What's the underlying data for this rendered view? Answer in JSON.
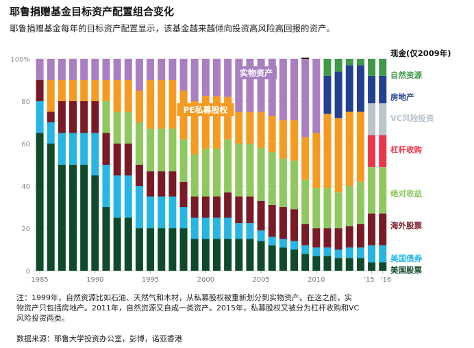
{
  "header": {
    "title": "耶鲁捐赠基金目标资产配置组合变化",
    "subtitle": "耶鲁捐赠基金每年的目标资产配置显示，该基金越来越倾向投资高风险高回报的资产。"
  },
  "footer": {
    "note_line1": "注：1999年，自然资源比如石油、天然气和木材，从私募股权被重新划分到实物资产。在这之前，实",
    "note_line2": "物资产只包括房地产。2011年，自然资源又自成一类资产。2015年，私募股权又被分为杠杆收购和VC",
    "note_line3": "风险投资两类。",
    "source": "数据来源：耶鲁大学投资办公室，彭博，诺亚香港"
  },
  "chart_data": {
    "type": "bar",
    "stacked": true,
    "title": "耶鲁捐赠基金目标资产配置组合变化",
    "categories": [
      "1985",
      "1986",
      "1987",
      "1988",
      "1989",
      "1990",
      "1991",
      "1992",
      "1993",
      "1994",
      "1995",
      "1996",
      "1997",
      "1998",
      "1999",
      "2000",
      "2001",
      "2002",
      "2003",
      "2004",
      "2005",
      "2006",
      "2007",
      "2008",
      "2009",
      "2010",
      "2011",
      "2012",
      "2013",
      "2014",
      "2015",
      "2016"
    ],
    "x_tick_labels": [
      "1985",
      "1990",
      "1995",
      "2000",
      "2005",
      "2010",
      "'15",
      "'16"
    ],
    "y_ticks": [
      "0",
      "20",
      "40",
      "60",
      "80",
      "100%"
    ],
    "ylim": [
      0,
      100
    ],
    "grid": true,
    "legend_position": "right",
    "bar_annotations": [
      {
        "series": "私募股权",
        "text": "PE私募股权"
      },
      {
        "series": "实物资产",
        "text": "实物资产"
      }
    ],
    "series": [
      {
        "name": "美国股票",
        "color": "#0f4a2a",
        "values": [
          65,
          60,
          50,
          50,
          50,
          45,
          30,
          25,
          25,
          20,
          20,
          20,
          20,
          20,
          15,
          15,
          15,
          15,
          15,
          15,
          14,
          12,
          11,
          10,
          8,
          7,
          7,
          6,
          6,
          6,
          4,
          4
        ]
      },
      {
        "name": "美国债券",
        "color": "#27b5e4",
        "values": [
          15,
          10,
          15,
          15,
          15,
          20,
          20,
          20,
          20,
          20,
          15,
          15,
          15,
          10,
          10,
          10,
          10,
          10,
          7.5,
          7.5,
          5,
          4,
          4,
          4,
          4,
          4,
          4,
          4,
          5,
          5,
          8,
          8
        ]
      },
      {
        "name": "海外股票",
        "color": "#7a1a26",
        "values": [
          10,
          5,
          15,
          15,
          15,
          15,
          15,
          15,
          15,
          10,
          12,
          12,
          12,
          12,
          10,
          10,
          10,
          12,
          12.5,
          12.5,
          14,
          15,
          15,
          15,
          10,
          9,
          9,
          10,
          10,
          11,
          15,
          15
        ]
      },
      {
        "name": "绝对收益",
        "color": "#8fc85f",
        "values": [
          0,
          0,
          0,
          0,
          0,
          0,
          15,
          15,
          15,
          20,
          20,
          20,
          20,
          20,
          20,
          22.5,
          22.5,
          25,
          25,
          25,
          25,
          25,
          23,
          23,
          21,
          19,
          19,
          17,
          19,
          20,
          22,
          22
        ]
      },
      {
        "name": "杠杆收购",
        "color": "#e9364a",
        "values": [
          0,
          0,
          0,
          0,
          0,
          0,
          0,
          0,
          0,
          0,
          0,
          0,
          0,
          0,
          0,
          0,
          0,
          0,
          0,
          0,
          0,
          0,
          0,
          0,
          0,
          0,
          0,
          0,
          0,
          0,
          15,
          15
        ]
      },
      {
        "name": "VC风险投资",
        "color": "#b9c4cd",
        "values": [
          0,
          0,
          0,
          0,
          0,
          0,
          0,
          0,
          0,
          0,
          0,
          0,
          0,
          0,
          0,
          0,
          0,
          0,
          0,
          0,
          0,
          0,
          0,
          0,
          0,
          0,
          0,
          0,
          0,
          0,
          15,
          15
        ]
      },
      {
        "name": "私募股权",
        "color": "#f59b22",
        "values": [
          0,
          15,
          10,
          10,
          10,
          10,
          10,
          15,
          15,
          15,
          23,
          23,
          23,
          23,
          25,
          25,
          25,
          20,
          15,
          15,
          17,
          17,
          18,
          19,
          20,
          26,
          35,
          35,
          35,
          33,
          0,
          0
        ]
      },
      {
        "name": "房地产",
        "color": "#223f91",
        "values": [
          0,
          0,
          0,
          0,
          0,
          0,
          0,
          0,
          0,
          0,
          0,
          0,
          0,
          0,
          0,
          0,
          0,
          0,
          0,
          0,
          0,
          0,
          0,
          0,
          0,
          0,
          18,
          22,
          22,
          22,
          13,
          13
        ]
      },
      {
        "name": "实物资产",
        "color": "#a97fc2",
        "values": [
          10,
          10,
          10,
          10,
          10,
          10,
          10,
          10,
          10,
          15,
          10,
          10,
          10,
          15,
          20,
          17.5,
          17.5,
          18,
          25,
          25,
          25,
          27,
          29,
          29,
          37,
          35,
          0,
          0,
          0,
          0,
          0,
          0
        ]
      },
      {
        "name": "自然资源",
        "color": "#3e9a47",
        "values": [
          0,
          0,
          0,
          0,
          0,
          0,
          0,
          0,
          0,
          0,
          0,
          0,
          0,
          0,
          0,
          0,
          0,
          0,
          0,
          0,
          0,
          0,
          0,
          0,
          0,
          0,
          8,
          6,
          3,
          3,
          8,
          8
        ]
      },
      {
        "name": "现金(仅2009年)",
        "color": "#111111",
        "values": [
          0,
          0,
          0,
          0,
          0,
          0,
          0,
          0,
          0,
          0,
          0,
          0,
          0,
          0,
          0,
          0,
          0,
          0,
          0,
          0,
          0,
          0,
          0,
          0,
          0.5,
          0,
          0,
          0,
          0,
          0,
          0,
          0
        ]
      }
    ]
  }
}
